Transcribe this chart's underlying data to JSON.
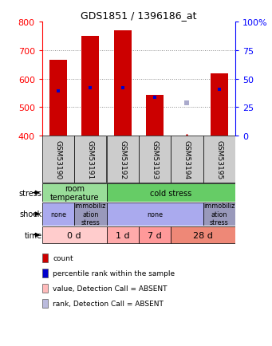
{
  "title": "GDS1851 / 1396186_at",
  "samples": [
    "GSM53190",
    "GSM53191",
    "GSM53192",
    "GSM53193",
    "GSM53194",
    "GSM53195"
  ],
  "bar_values": [
    667,
    751,
    769,
    543,
    0,
    617
  ],
  "bar_bottom": 400,
  "blue_dot_values": [
    556,
    568,
    568,
    533,
    515,
    563
  ],
  "absent_sample_idx": 4,
  "absent_rank_value": 515,
  "ylim": [
    400,
    800
  ],
  "bar_color": "#cc0000",
  "blue_dot_color": "#0000cc",
  "absent_rank_color": "#aaaacc",
  "grid_color": "#888888",
  "stress_row": {
    "groups": [
      {
        "label": "room\ntemperature",
        "span": [
          0,
          2
        ],
        "color": "#99dd99"
      },
      {
        "label": "cold stress",
        "span": [
          2,
          6
        ],
        "color": "#66cc66"
      }
    ]
  },
  "shock_row": {
    "groups": [
      {
        "label": "none",
        "span": [
          0,
          1
        ],
        "color": "#aaaaee"
      },
      {
        "label": "immobiliz\nation\nstress",
        "span": [
          1,
          2
        ],
        "color": "#9999bb"
      },
      {
        "label": "none",
        "span": [
          2,
          5
        ],
        "color": "#aaaaee"
      },
      {
        "label": "immobiliz\nation\nstress",
        "span": [
          5,
          6
        ],
        "color": "#9999bb"
      }
    ]
  },
  "time_row": {
    "groups": [
      {
        "label": "0 d",
        "span": [
          0,
          2
        ],
        "color": "#ffcccc"
      },
      {
        "label": "1 d",
        "span": [
          2,
          3
        ],
        "color": "#ffaaaa"
      },
      {
        "label": "7 d",
        "span": [
          3,
          4
        ],
        "color": "#ff9999"
      },
      {
        "label": "28 d",
        "span": [
          4,
          6
        ],
        "color": "#ee8877"
      }
    ]
  },
  "legend_items": [
    {
      "color": "#cc0000",
      "label": "count"
    },
    {
      "color": "#0000cc",
      "label": "percentile rank within the sample"
    },
    {
      "color": "#ffbbbb",
      "label": "value, Detection Call = ABSENT"
    },
    {
      "color": "#bbbbdd",
      "label": "rank, Detection Call = ABSENT"
    }
  ],
  "right_yticks": [
    0,
    25,
    50,
    75,
    100
  ],
  "right_yticklabels": [
    "0",
    "25",
    "50",
    "75",
    "100%"
  ]
}
